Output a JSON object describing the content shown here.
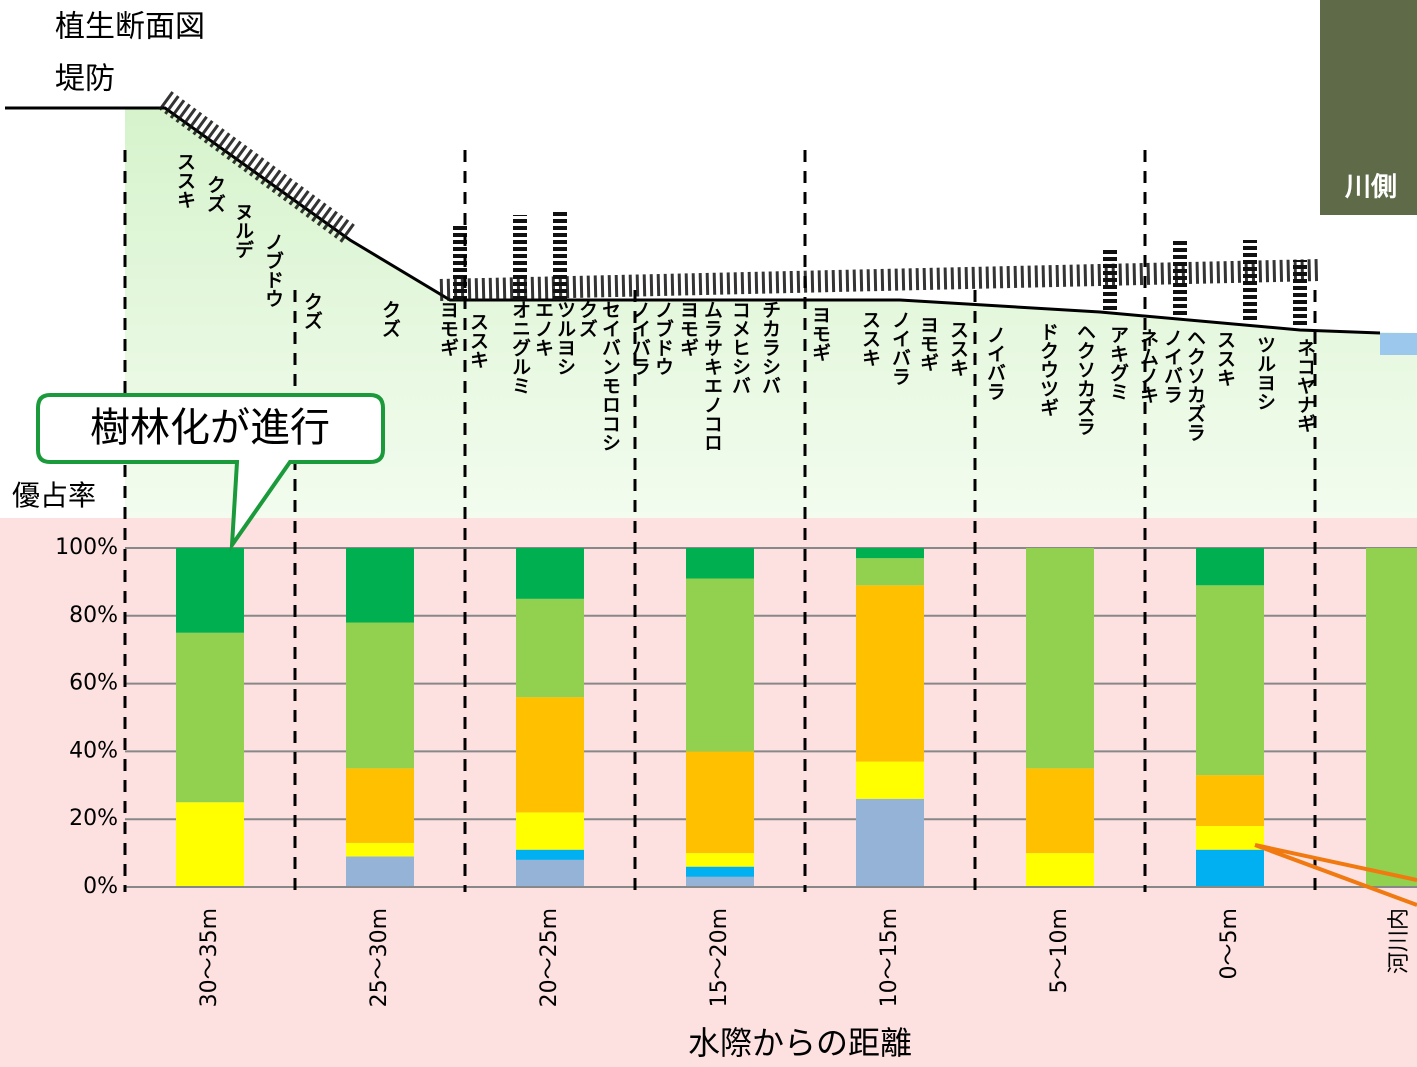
{
  "title": "植生断面図",
  "levee_label": "堤防",
  "photo_label": "川側",
  "callout": "樹林化が進行",
  "species": [
    "ススキ",
    "クズ",
    "ヌルデ",
    "ノブドウ",
    "クズ",
    "クズ",
    "ヨモギ",
    "ススキ",
    "オニグルミ",
    "エノキ",
    "ツルヨシ",
    "クズ",
    "セイバンモロコシ",
    "ノイバラ",
    "ノブドウ",
    "ヨモギ",
    "ムラサキエノコロ",
    "コメヒシバ",
    "チカラシバ",
    "ヨモギ",
    "ススキ",
    "ノイバラ",
    "ヨモギ",
    "ススキ",
    "ノイバラ",
    "ドクウツギ",
    "ヘクソカズラ",
    "アキグミ",
    "ネムノキ",
    "ノイバラ",
    "ヘクソカズラ",
    "ススキ",
    "ツルヨシ",
    "ネコヤナギ"
  ],
  "chart_data": {
    "type": "bar",
    "stacked": true,
    "y_label": "優占率",
    "x_label": "水際からの距離",
    "categories": [
      "30～35m",
      "25～30m",
      "20～25m",
      "15～20m",
      "10～15m",
      "5～10m",
      "0～5m",
      "河川内"
    ],
    "series": [
      {
        "color": "#95b3d7",
        "values": [
          0,
          9,
          8,
          3,
          26,
          0,
          0,
          0
        ]
      },
      {
        "color": "#00b0f0",
        "values": [
          0,
          0,
          3,
          3,
          0,
          0,
          11,
          0
        ]
      },
      {
        "color": "#ffff00",
        "values": [
          25,
          4,
          11,
          4,
          11,
          10,
          7,
          0
        ]
      },
      {
        "color": "#ffc000",
        "values": [
          0,
          22,
          34,
          30,
          52,
          25,
          15,
          0
        ]
      },
      {
        "color": "#92d050",
        "values": [
          50,
          43,
          29,
          51,
          8,
          65,
          56,
          100
        ]
      },
      {
        "color": "#00b050",
        "values": [
          25,
          22,
          15,
          9,
          3,
          0,
          11,
          0
        ]
      }
    ],
    "ylim": [
      0,
      100
    ],
    "yticks": [
      {
        "value": 0,
        "label": "0%"
      },
      {
        "value": 20,
        "label": "20%"
      },
      {
        "value": 40,
        "label": "40%"
      },
      {
        "value": 60,
        "label": "60%"
      },
      {
        "value": 80,
        "label": "80%"
      },
      {
        "value": 100,
        "label": "100%"
      }
    ],
    "grid": true
  }
}
